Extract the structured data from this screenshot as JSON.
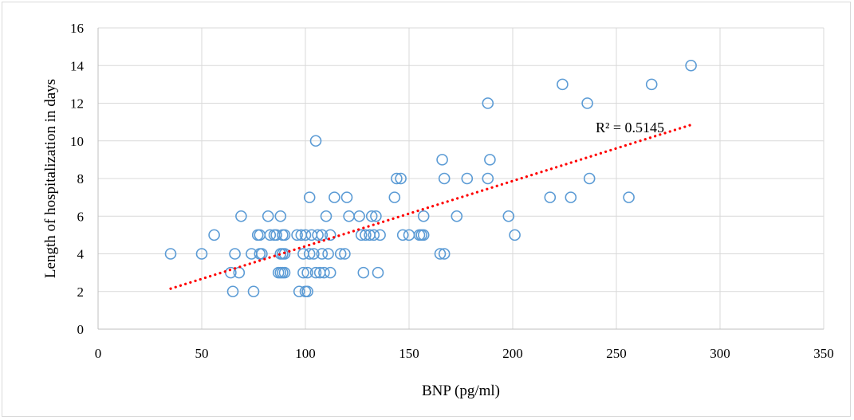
{
  "chart_data": {
    "type": "scatter",
    "title": "",
    "xlabel": "BNP (pg/ml)",
    "ylabel": "Length of hospitalization in days",
    "xlim": [
      0,
      350
    ],
    "ylim": [
      0,
      16
    ],
    "xticks": [
      "0",
      "50",
      "100",
      "150",
      "200",
      "250",
      "300",
      "350"
    ],
    "yticks": [
      "0",
      "2",
      "4",
      "6",
      "8",
      "10",
      "12",
      "14",
      "16"
    ],
    "grid": true,
    "legend": "none",
    "marker_color": "#5b9bd5",
    "trendline_color": "#ff0000",
    "trendline": {
      "type": "linear",
      "x": [
        35,
        286
      ],
      "y": [
        2.15,
        10.85
      ],
      "label": "R² = 0.5145"
    },
    "series": [
      {
        "points": [
          [
            35,
            4
          ],
          [
            50,
            4
          ],
          [
            56,
            5
          ],
          [
            64,
            3
          ],
          [
            65,
            2
          ],
          [
            66,
            4
          ],
          [
            68,
            3
          ],
          [
            69,
            6
          ],
          [
            74,
            4
          ],
          [
            75,
            2
          ],
          [
            77,
            5
          ],
          [
            78,
            5
          ],
          [
            78,
            4
          ],
          [
            79,
            4
          ],
          [
            82,
            6
          ],
          [
            83,
            5
          ],
          [
            85,
            5
          ],
          [
            86,
            5
          ],
          [
            87,
            3
          ],
          [
            88,
            6
          ],
          [
            88,
            4
          ],
          [
            88,
            3
          ],
          [
            89,
            5
          ],
          [
            89,
            4
          ],
          [
            89,
            3
          ],
          [
            90,
            5
          ],
          [
            90,
            4
          ],
          [
            90,
            3
          ],
          [
            96,
            5
          ],
          [
            97,
            2
          ],
          [
            98,
            5
          ],
          [
            99,
            3
          ],
          [
            99,
            4
          ],
          [
            100,
            2
          ],
          [
            101,
            2
          ],
          [
            100,
            5
          ],
          [
            101,
            3
          ],
          [
            102,
            7
          ],
          [
            102,
            4
          ],
          [
            103,
            5
          ],
          [
            104,
            4
          ],
          [
            105,
            10
          ],
          [
            105,
            3
          ],
          [
            106,
            5
          ],
          [
            107,
            3
          ],
          [
            108,
            5
          ],
          [
            108,
            4
          ],
          [
            109,
            3
          ],
          [
            110,
            6
          ],
          [
            111,
            4
          ],
          [
            112,
            5
          ],
          [
            112,
            3
          ],
          [
            114,
            7
          ],
          [
            117,
            4
          ],
          [
            119,
            4
          ],
          [
            120,
            7
          ],
          [
            121,
            6
          ],
          [
            126,
            6
          ],
          [
            127,
            5
          ],
          [
            128,
            3
          ],
          [
            129,
            5
          ],
          [
            131,
            5
          ],
          [
            132,
            6
          ],
          [
            133,
            5
          ],
          [
            134,
            6
          ],
          [
            135,
            3
          ],
          [
            136,
            5
          ],
          [
            143,
            7
          ],
          [
            144,
            8
          ],
          [
            146,
            8
          ],
          [
            147,
            5
          ],
          [
            150,
            5
          ],
          [
            155,
            5
          ],
          [
            156,
            5
          ],
          [
            157,
            5
          ],
          [
            157,
            6
          ],
          [
            165,
            4
          ],
          [
            166,
            9
          ],
          [
            167,
            4
          ],
          [
            167,
            8
          ],
          [
            173,
            6
          ],
          [
            178,
            8
          ],
          [
            188,
            12
          ],
          [
            188,
            8
          ],
          [
            189,
            9
          ],
          [
            198,
            6
          ],
          [
            201,
            5
          ],
          [
            218,
            7
          ],
          [
            224,
            13
          ],
          [
            228,
            7
          ],
          [
            236,
            12
          ],
          [
            237,
            8
          ],
          [
            256,
            7
          ],
          [
            267,
            13
          ],
          [
            286,
            14
          ]
        ]
      }
    ]
  }
}
